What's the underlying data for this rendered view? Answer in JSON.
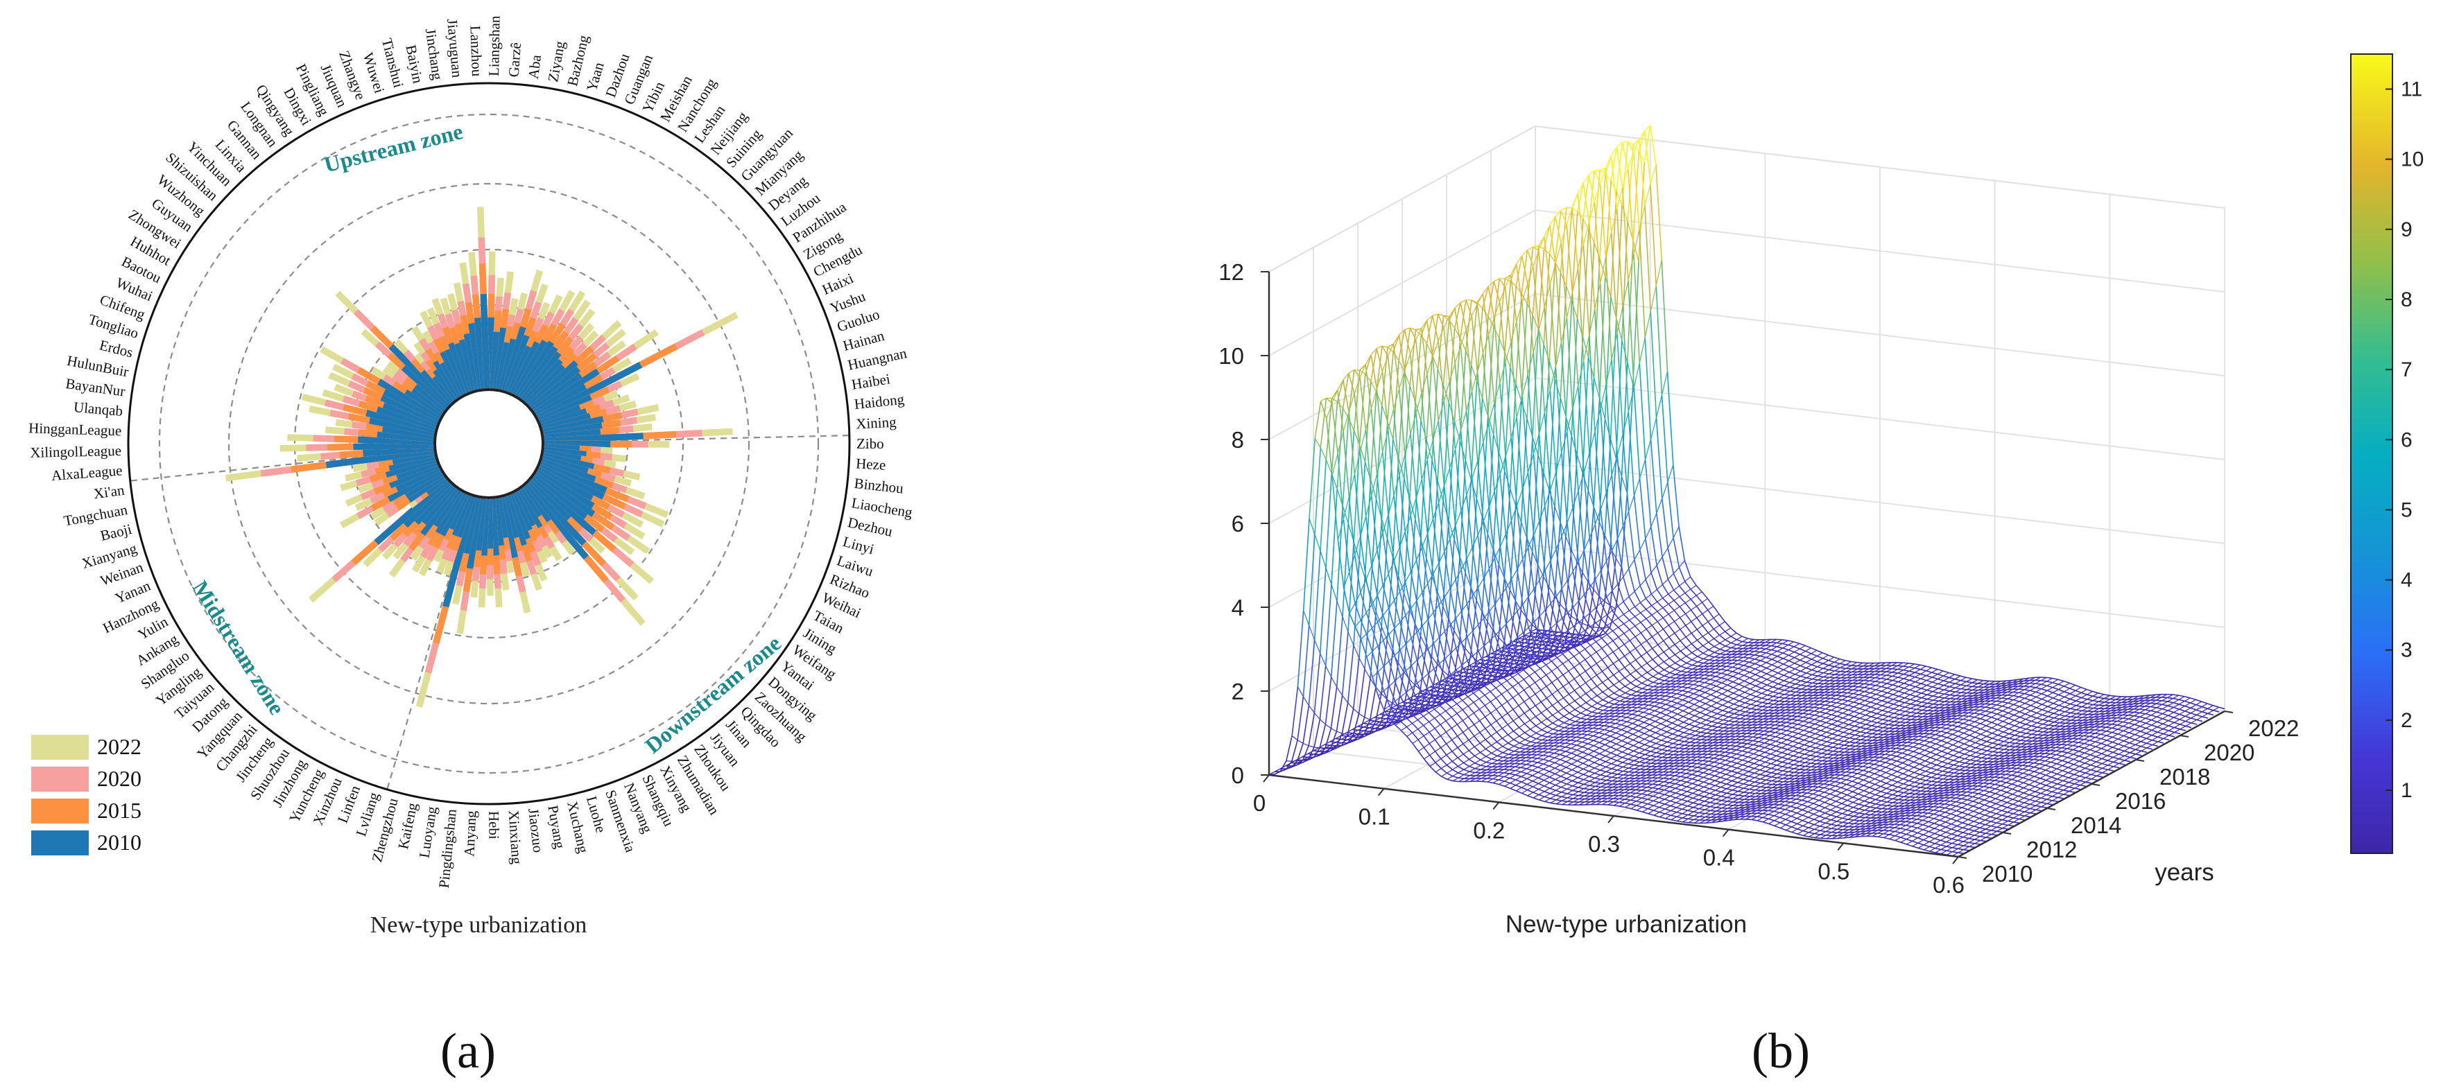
{
  "figure": {
    "panel_a": "(a)",
    "panel_b": "(b)"
  },
  "colors": {
    "y2022": "#dede94",
    "y2020": "#f7a0a0",
    "y2015": "#fd9142",
    "y2010": "#1f78b4",
    "zone_text": "#1a8a8a",
    "grid": "#8c8c8c"
  },
  "chart_data": [
    {
      "type": "bar",
      "subtype": "radial-stacked",
      "xlabel": "New-type urbanization",
      "legend": {
        "placement": "bottom-left",
        "entries": [
          "2022",
          "2020",
          "2015",
          "2010"
        ]
      },
      "zones": [
        "Upstream zone",
        "Midstream zone",
        "Downstream zone"
      ],
      "categories": [
        "Liangshan",
        "Garzê",
        "Aba",
        "Ziyang",
        "Bazhong",
        "Yaan",
        "Dazhou",
        "Guangan",
        "Yibin",
        "Meishan",
        "Nanchong",
        "Leshan",
        "Neijiang",
        "Suining",
        "Guangyuan",
        "Mianyang",
        "Deyang",
        "Luzhou",
        "Panzhihua",
        "Zigong",
        "Chengdu",
        "Haixi",
        "Yushu",
        "Guoluo",
        "Hainan",
        "Huangnan",
        "Haibei",
        "Haidong",
        "Xining",
        "Zibo",
        "Heze",
        "Binzhou",
        "Liaocheng",
        "Dezhou",
        "Linyi",
        "Laiwu",
        "Rizhao",
        "Weihai",
        "Taian",
        "Jining",
        "Weifang",
        "Yantai",
        "Dongying",
        "Zaozhuang",
        "Qingdao",
        "Jinan",
        "Jiyuan",
        "Zhoukou",
        "Zhumadian",
        "Xinyang",
        "Shangqiu",
        "Nanyang",
        "Sanmenxia",
        "Luohe",
        "Xuchang",
        "Puyang",
        "Jiaozuo",
        "Xinxiang",
        "Hebi",
        "Anyang",
        "Pingdingshan",
        "Luoyang",
        "Kaifeng",
        "Zhengzhou",
        "Lvliang",
        "Linfen",
        "Xinzhou",
        "Yuncheng",
        "Jinzhong",
        "Shuozhou",
        "Jincheng",
        "Changzhi",
        "Yangquan",
        "Datong",
        "Taiyuan",
        "Yangling",
        "Shangluo",
        "Ankang",
        "Yulin",
        "Hanzhong",
        "Yanan",
        "Weinan",
        "Xianyang",
        "Baoji",
        "Tongchuan",
        "Xi'an",
        "AlxaLeague",
        "XilingolLeague",
        "HingganLeague",
        "Ulanqab",
        "BayanNur",
        "HulunBuir",
        "Erdos",
        "Tongliao",
        "Chifeng",
        "Wuhai",
        "Baotou",
        "Huhhot",
        "Zhongwei",
        "Guyuan",
        "Wuzhong",
        "Shizuishan",
        "Yinchuan",
        "Linxia",
        "Gannan",
        "Longnan",
        "Qingyang",
        "Dingxi",
        "Pingliang",
        "Jiuquan",
        "Zhangye",
        "Wuwei",
        "Tianshui",
        "Baiyin",
        "Jinchang",
        "Jiayuguan",
        "Lanzhou"
      ],
      "series": [
        {
          "name": "2010",
          "values": [
            0.03,
            0.024,
            0.026,
            0.02,
            0.022,
            0.028,
            0.025,
            0.021,
            0.024,
            0.026,
            0.027,
            0.026,
            0.025,
            0.023,
            0.022,
            0.027,
            0.026,
            0.025,
            0.032,
            0.024,
            0.049,
            0.024,
            0.018,
            0.02,
            0.021,
            0.026,
            0.025,
            0.024,
            0.042,
            0.028,
            0.015,
            0.018,
            0.016,
            0.022,
            0.02,
            0.024,
            0.03,
            0.03,
            0.026,
            0.028,
            0.03,
            0.028,
            0.035,
            0.023,
            0.035,
            0.04,
            0.018,
            0.014,
            0.018,
            0.016,
            0.017,
            0.02,
            0.022,
            0.018,
            0.026,
            0.017,
            0.02,
            0.024,
            0.021,
            0.024,
            0.022,
            0.03,
            0.024,
            0.048,
            0.018,
            0.018,
            0.016,
            0.02,
            0.02,
            0.018,
            0.024,
            0.02,
            0.022,
            0.026,
            0.04,
            0.01,
            0.018,
            0.018,
            0.025,
            0.02,
            0.022,
            0.018,
            0.022,
            0.02,
            0.018,
            0.046,
            0.03,
            0.034,
            0.032,
            0.024,
            0.022,
            0.028,
            0.03,
            0.026,
            0.024,
            0.026,
            0.026,
            0.03,
            0.018,
            0.016,
            0.016,
            0.025,
            0.035,
            0.018,
            0.013,
            0.015,
            0.018,
            0.016,
            0.02,
            0.02,
            0.022,
            0.021,
            0.022,
            0.024,
            0.028,
            0.03,
            0.04
          ]
        },
        {
          "name": "2015",
          "values": [
            0.04,
            0.033,
            0.034,
            0.027,
            0.029,
            0.036,
            0.033,
            0.028,
            0.032,
            0.034,
            0.036,
            0.034,
            0.033,
            0.03,
            0.029,
            0.036,
            0.035,
            0.033,
            0.042,
            0.032,
            0.066,
            0.032,
            0.024,
            0.026,
            0.028,
            0.034,
            0.033,
            0.032,
            0.056,
            0.037,
            0.02,
            0.024,
            0.021,
            0.029,
            0.026,
            0.032,
            0.04,
            0.04,
            0.034,
            0.037,
            0.04,
            0.037,
            0.046,
            0.03,
            0.047,
            0.053,
            0.024,
            0.019,
            0.023,
            0.021,
            0.022,
            0.026,
            0.029,
            0.024,
            0.034,
            0.022,
            0.026,
            0.032,
            0.028,
            0.032,
            0.029,
            0.04,
            0.032,
            0.064,
            0.024,
            0.024,
            0.021,
            0.026,
            0.026,
            0.024,
            0.032,
            0.026,
            0.029,
            0.034,
            0.053,
            0.013,
            0.024,
            0.024,
            0.033,
            0.026,
            0.029,
            0.024,
            0.029,
            0.026,
            0.024,
            0.061,
            0.04,
            0.045,
            0.042,
            0.032,
            0.029,
            0.037,
            0.04,
            0.034,
            0.032,
            0.034,
            0.034,
            0.04,
            0.024,
            0.021,
            0.021,
            0.033,
            0.046,
            0.024,
            0.017,
            0.02,
            0.024,
            0.021,
            0.026,
            0.026,
            0.029,
            0.028,
            0.029,
            0.032,
            0.037,
            0.04,
            0.053
          ]
        },
        {
          "name": "2020",
          "values": [
            0.048,
            0.039,
            0.041,
            0.032,
            0.035,
            0.044,
            0.04,
            0.034,
            0.038,
            0.041,
            0.043,
            0.041,
            0.04,
            0.036,
            0.035,
            0.043,
            0.042,
            0.04,
            0.051,
            0.038,
            0.079,
            0.038,
            0.029,
            0.032,
            0.034,
            0.041,
            0.04,
            0.038,
            0.067,
            0.044,
            0.024,
            0.029,
            0.026,
            0.035,
            0.032,
            0.038,
            0.048,
            0.048,
            0.041,
            0.044,
            0.048,
            0.044,
            0.056,
            0.036,
            0.056,
            0.064,
            0.029,
            0.022,
            0.028,
            0.026,
            0.027,
            0.032,
            0.035,
            0.029,
            0.041,
            0.027,
            0.032,
            0.038,
            0.034,
            0.038,
            0.035,
            0.048,
            0.038,
            0.077,
            0.029,
            0.029,
            0.026,
            0.032,
            0.032,
            0.029,
            0.038,
            0.032,
            0.035,
            0.041,
            0.064,
            0.016,
            0.029,
            0.029,
            0.04,
            0.032,
            0.035,
            0.029,
            0.035,
            0.032,
            0.029,
            0.074,
            0.048,
            0.054,
            0.051,
            0.038,
            0.035,
            0.045,
            0.048,
            0.041,
            0.038,
            0.041,
            0.041,
            0.048,
            0.029,
            0.026,
            0.026,
            0.04,
            0.056,
            0.029,
            0.021,
            0.024,
            0.029,
            0.026,
            0.032,
            0.032,
            0.035,
            0.034,
            0.035,
            0.038,
            0.045,
            0.048,
            0.064
          ]
        },
        {
          "name": "2022",
          "values": [
            0.058,
            0.047,
            0.05,
            0.039,
            0.042,
            0.053,
            0.048,
            0.041,
            0.046,
            0.05,
            0.052,
            0.05,
            0.048,
            0.043,
            0.042,
            0.052,
            0.051,
            0.048,
            0.062,
            0.046,
            0.095,
            0.046,
            0.035,
            0.039,
            0.041,
            0.05,
            0.048,
            0.046,
            0.08,
            0.053,
            0.029,
            0.035,
            0.031,
            0.042,
            0.039,
            0.046,
            0.058,
            0.058,
            0.05,
            0.053,
            0.058,
            0.053,
            0.067,
            0.043,
            0.067,
            0.077,
            0.035,
            0.027,
            0.034,
            0.031,
            0.032,
            0.039,
            0.042,
            0.035,
            0.05,
            0.032,
            0.039,
            0.046,
            0.041,
            0.046,
            0.042,
            0.058,
            0.046,
            0.092,
            0.035,
            0.035,
            0.031,
            0.039,
            0.039,
            0.035,
            0.046,
            0.039,
            0.042,
            0.05,
            0.077,
            0.019,
            0.035,
            0.035,
            0.048,
            0.039,
            0.042,
            0.035,
            0.042,
            0.039,
            0.035,
            0.089,
            0.058,
            0.065,
            0.062,
            0.046,
            0.042,
            0.054,
            0.058,
            0.05,
            0.046,
            0.05,
            0.05,
            0.058,
            0.035,
            0.031,
            0.031,
            0.048,
            0.067,
            0.035,
            0.025,
            0.029,
            0.035,
            0.031,
            0.039,
            0.039,
            0.042,
            0.041,
            0.042,
            0.046,
            0.054,
            0.058,
            0.077
          ]
        }
      ]
    },
    {
      "type": "surface",
      "subtype": "3d-mesh kernel density",
      "xlabel": "New-type urbanization",
      "ylabel": "years",
      "zlabel": "",
      "x_ticks": [
        "0",
        "0.1",
        "0.2",
        "0.3",
        "0.4",
        "0.5",
        "0.6"
      ],
      "y_ticks": [
        "2010",
        "2012",
        "2014",
        "2016",
        "2018",
        "2020",
        "2022"
      ],
      "z_ticks": [
        "0",
        "2",
        "4",
        "6",
        "8",
        "10",
        "12"
      ],
      "xlim": [
        0,
        0.6
      ],
      "ylim": [
        2010,
        2022
      ],
      "zlim": [
        0,
        12
      ],
      "colorbar": {
        "ticks": [
          "1",
          "2",
          "3",
          "4",
          "5",
          "6",
          "7",
          "8",
          "9",
          "10",
          "11"
        ],
        "range": [
          0.1,
          11.5
        ],
        "colormap": "parula"
      },
      "peaks": [
        {
          "x": 0.045,
          "height": 9.5,
          "sigma": 0.012
        },
        {
          "x": 0.075,
          "height": 3.0,
          "sigma": 0.014
        },
        {
          "x": 0.11,
          "height": 1.4,
          "sigma": 0.022
        },
        {
          "x": 0.19,
          "height": 0.45,
          "sigma": 0.03
        },
        {
          "x": 0.3,
          "height": 0.25,
          "sigma": 0.03
        },
        {
          "x": 0.42,
          "height": 0.3,
          "sigma": 0.025
        },
        {
          "x": 0.53,
          "height": 0.25,
          "sigma": 0.025
        }
      ],
      "peak_shift_per_year": 0.0045,
      "grid": true
    }
  ]
}
